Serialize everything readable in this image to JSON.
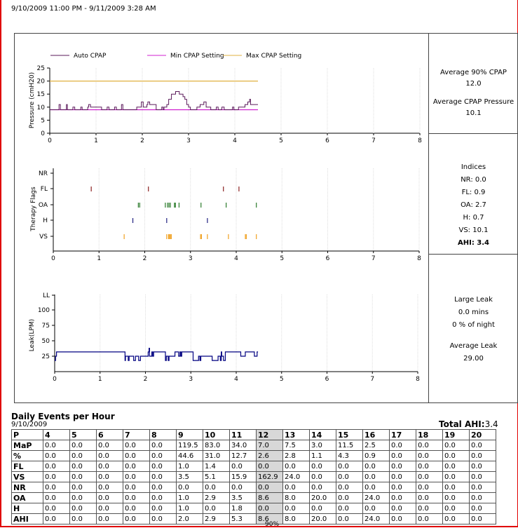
{
  "header": {
    "date_range": "9/10/2009 11:00 PM - 9/11/2009 3:28 AM"
  },
  "colors": {
    "auto_cpap": "#5a1a5a",
    "min_cpap": "#d020d0",
    "max_cpap": "#e0b040",
    "fl": "#8b2020",
    "oa": "#2a7a2a",
    "h": "#202080",
    "vs": "#f0a020",
    "leak": "#000080"
  },
  "chart_data": [
    {
      "type": "line",
      "title": "",
      "ylabel": "Pressure (cmH20)",
      "xlim": [
        0,
        8
      ],
      "ylim": [
        0,
        25
      ],
      "xticks": [
        "0",
        "1",
        "2",
        "3",
        "4",
        "5",
        "6",
        "7",
        "8"
      ],
      "yticks": [
        "0",
        "5",
        "10",
        "15",
        "20",
        "25"
      ],
      "legend": [
        "Auto CPAP",
        "Min CPAP Setting",
        "Max CPAP Setting"
      ],
      "series": [
        {
          "name": "Auto CPAP",
          "points": [
            [
              0,
              9
            ],
            [
              0.2,
              9
            ],
            [
              0.2,
              11
            ],
            [
              0.23,
              11
            ],
            [
              0.23,
              9
            ],
            [
              0.36,
              9
            ],
            [
              0.36,
              11
            ],
            [
              0.38,
              11
            ],
            [
              0.38,
              9
            ],
            [
              0.5,
              9
            ],
            [
              0.5,
              10
            ],
            [
              0.54,
              10
            ],
            [
              0.54,
              9
            ],
            [
              0.67,
              9
            ],
            [
              0.67,
              10
            ],
            [
              0.7,
              10
            ],
            [
              0.7,
              9
            ],
            [
              0.82,
              9
            ],
            [
              0.82,
              10
            ],
            [
              0.84,
              10
            ],
            [
              0.84,
              11
            ],
            [
              0.88,
              11
            ],
            [
              0.88,
              10
            ],
            [
              1.12,
              10
            ],
            [
              1.12,
              9
            ],
            [
              1.24,
              9
            ],
            [
              1.24,
              10
            ],
            [
              1.28,
              10
            ],
            [
              1.28,
              9
            ],
            [
              1.4,
              9
            ],
            [
              1.4,
              10
            ],
            [
              1.44,
              10
            ],
            [
              1.44,
              9
            ],
            [
              1.55,
              9
            ],
            [
              1.55,
              11
            ],
            [
              1.58,
              11
            ],
            [
              1.58,
              9
            ],
            [
              1.88,
              9
            ],
            [
              1.88,
              10
            ],
            [
              1.98,
              10
            ],
            [
              1.98,
              12
            ],
            [
              2.02,
              12
            ],
            [
              2.02,
              10
            ],
            [
              2.1,
              10
            ],
            [
              2.1,
              11
            ],
            [
              2.12,
              11
            ],
            [
              2.12,
              12
            ],
            [
              2.16,
              12
            ],
            [
              2.16,
              11
            ],
            [
              2.3,
              11
            ],
            [
              2.3,
              9
            ],
            [
              2.42,
              9
            ],
            [
              2.42,
              10
            ],
            [
              2.45,
              10
            ],
            [
              2.45,
              9
            ],
            [
              2.47,
              9
            ],
            [
              2.47,
              10
            ],
            [
              2.53,
              10
            ],
            [
              2.53,
              11
            ],
            [
              2.57,
              11
            ],
            [
              2.57,
              13
            ],
            [
              2.63,
              13
            ],
            [
              2.63,
              15
            ],
            [
              2.72,
              15
            ],
            [
              2.72,
              16
            ],
            [
              2.8,
              16
            ],
            [
              2.8,
              15
            ],
            [
              2.88,
              15
            ],
            [
              2.88,
              14
            ],
            [
              2.92,
              14
            ],
            [
              2.92,
              13
            ],
            [
              2.96,
              13
            ],
            [
              2.96,
              11
            ],
            [
              3.0,
              11
            ],
            [
              3.0,
              10
            ],
            [
              3.04,
              10
            ],
            [
              3.04,
              9
            ],
            [
              3.18,
              9
            ],
            [
              3.18,
              10
            ],
            [
              3.25,
              10
            ],
            [
              3.25,
              11
            ],
            [
              3.33,
              11
            ],
            [
              3.33,
              12
            ],
            [
              3.38,
              12
            ],
            [
              3.38,
              10
            ],
            [
              3.48,
              10
            ],
            [
              3.48,
              9
            ],
            [
              3.6,
              9
            ],
            [
              3.6,
              10
            ],
            [
              3.64,
              10
            ],
            [
              3.64,
              9
            ],
            [
              3.72,
              9
            ],
            [
              3.72,
              10
            ],
            [
              3.77,
              10
            ],
            [
              3.77,
              9
            ],
            [
              3.95,
              9
            ],
            [
              3.95,
              10
            ],
            [
              3.98,
              10
            ],
            [
              3.98,
              9
            ],
            [
              4.08,
              9
            ],
            [
              4.08,
              10
            ],
            [
              4.22,
              10
            ],
            [
              4.22,
              11
            ],
            [
              4.28,
              11
            ],
            [
              4.28,
              12
            ],
            [
              4.32,
              12
            ],
            [
              4.32,
              13
            ],
            [
              4.34,
              13
            ],
            [
              4.34,
              11
            ],
            [
              4.5,
              11
            ]
          ]
        },
        {
          "name": "Min CPAP Setting",
          "points": [
            [
              0,
              9
            ],
            [
              4.5,
              9
            ]
          ]
        },
        {
          "name": "Max CPAP Setting",
          "points": [
            [
              0,
              20
            ],
            [
              4.5,
              20
            ]
          ]
        }
      ]
    },
    {
      "type": "scatter",
      "ylabel": "Therapy Flags",
      "xlim": [
        0,
        8
      ],
      "xticks": [
        "0",
        "1",
        "2",
        "3",
        "4",
        "5",
        "6",
        "7",
        "8"
      ],
      "categories": [
        "NR",
        "FL",
        "OA",
        "H",
        "VS"
      ],
      "series": [
        {
          "name": "NR",
          "x": []
        },
        {
          "name": "FL",
          "x": [
            0.83,
            2.08,
            3.72,
            4.06
          ]
        },
        {
          "name": "OA",
          "x": [
            1.86,
            1.89,
            2.45,
            2.5,
            2.53,
            2.56,
            2.65,
            2.67,
            2.75,
            3.23,
            3.78,
            4.44
          ]
        },
        {
          "name": "H",
          "x": [
            1.74,
            2.48,
            3.37
          ]
        },
        {
          "name": "VS",
          "x": [
            1.55,
            2.48,
            2.52,
            2.54,
            2.56,
            2.58,
            3.22,
            3.24,
            3.37,
            3.83,
            4.2,
            4.22,
            4.44
          ]
        }
      ]
    },
    {
      "type": "line",
      "ylabel": "Leak(LPM)",
      "xlim": [
        0,
        8
      ],
      "ylim": [
        0,
        125
      ],
      "xticks": [
        "0",
        "1",
        "2",
        "3",
        "4",
        "5",
        "6",
        "7",
        "8"
      ],
      "yticks": [
        "25",
        "50",
        "75",
        "100",
        "LL"
      ],
      "series": [
        {
          "name": "Leak",
          "points": [
            [
              0,
              18
            ],
            [
              0.02,
              18
            ],
            [
              0.02,
              25
            ],
            [
              0.04,
              25
            ],
            [
              0.04,
              32
            ],
            [
              1.55,
              32
            ],
            [
              1.55,
              18
            ],
            [
              1.56,
              18
            ],
            [
              1.56,
              25
            ],
            [
              1.62,
              25
            ],
            [
              1.62,
              18
            ],
            [
              1.64,
              18
            ],
            [
              1.64,
              25
            ],
            [
              1.74,
              25
            ],
            [
              1.74,
              18
            ],
            [
              1.78,
              18
            ],
            [
              1.78,
              25
            ],
            [
              1.85,
              25
            ],
            [
              1.85,
              18
            ],
            [
              1.89,
              18
            ],
            [
              1.89,
              25
            ],
            [
              2.06,
              25
            ],
            [
              2.06,
              32
            ],
            [
              2.08,
              32
            ],
            [
              2.08,
              38
            ],
            [
              2.09,
              38
            ],
            [
              2.09,
              25
            ],
            [
              2.14,
              25
            ],
            [
              2.14,
              32
            ],
            [
              2.16,
              32
            ],
            [
              2.16,
              25
            ],
            [
              2.18,
              25
            ],
            [
              2.18,
              32
            ],
            [
              2.44,
              32
            ],
            [
              2.44,
              18
            ],
            [
              2.46,
              18
            ],
            [
              2.46,
              25
            ],
            [
              2.5,
              25
            ],
            [
              2.5,
              18
            ],
            [
              2.52,
              18
            ],
            [
              2.52,
              25
            ],
            [
              2.65,
              25
            ],
            [
              2.65,
              32
            ],
            [
              2.73,
              32
            ],
            [
              2.73,
              25
            ],
            [
              2.76,
              25
            ],
            [
              2.76,
              32
            ],
            [
              2.78,
              32
            ],
            [
              2.78,
              25
            ],
            [
              2.8,
              25
            ],
            [
              2.8,
              32
            ],
            [
              3.05,
              32
            ],
            [
              3.05,
              18
            ],
            [
              3.17,
              18
            ],
            [
              3.17,
              25
            ],
            [
              3.2,
              25
            ],
            [
              3.2,
              18
            ],
            [
              3.22,
              18
            ],
            [
              3.22,
              25
            ],
            [
              3.47,
              25
            ],
            [
              3.47,
              18
            ],
            [
              3.6,
              18
            ],
            [
              3.6,
              25
            ],
            [
              3.65,
              25
            ],
            [
              3.65,
              18
            ],
            [
              3.67,
              18
            ],
            [
              3.67,
              32
            ],
            [
              3.68,
              32
            ],
            [
              3.68,
              25
            ],
            [
              3.72,
              25
            ],
            [
              3.72,
              18
            ],
            [
              3.76,
              18
            ],
            [
              3.76,
              32
            ],
            [
              4.1,
              32
            ],
            [
              4.1,
              25
            ],
            [
              4.2,
              25
            ],
            [
              4.2,
              32
            ],
            [
              4.4,
              32
            ],
            [
              4.4,
              25
            ],
            [
              4.46,
              25
            ],
            [
              4.46,
              32
            ],
            [
              4.48,
              32
            ]
          ]
        }
      ]
    }
  ],
  "sidebar": {
    "pressure": {
      "avg90_label": "Average 90% CPAP",
      "avg90_value": "12.0",
      "avg_label": "Average CPAP Pressure",
      "avg_value": "10.1"
    },
    "indices": {
      "title": "Indices",
      "items": [
        "NR: 0.0",
        "FL: 0.9",
        "OA: 2.7",
        "H: 0.7",
        "VS: 10.1"
      ],
      "ahi": "AHI: 3.4"
    },
    "leak": {
      "large_leak_label": "Large Leak",
      "large_leak_mins": "0.0 mins",
      "large_leak_pct": "0 % of night",
      "avg_label": "Average Leak",
      "avg_value": "29.00"
    }
  },
  "events": {
    "title": "Daily Events per Hour",
    "date": "9/10/2009",
    "total_label": "Total AHI:",
    "total_value": "3.4",
    "highlight_col": "12",
    "footnote": "90%",
    "columns": [
      "P",
      "4",
      "5",
      "6",
      "7",
      "8",
      "9",
      "10",
      "11",
      "12",
      "13",
      "14",
      "15",
      "16",
      "17",
      "18",
      "19",
      "20"
    ],
    "rows": [
      [
        "MaP",
        "0.0",
        "0.0",
        "0.0",
        "0.0",
        "0.0",
        "119.5",
        "83.0",
        "34.0",
        "7.0",
        "7.5",
        "3.0",
        "11.5",
        "2.5",
        "0.0",
        "0.0",
        "0.0",
        "0.0"
      ],
      [
        "%",
        "0.0",
        "0.0",
        "0.0",
        "0.0",
        "0.0",
        "44.6",
        "31.0",
        "12.7",
        "2.6",
        "2.8",
        "1.1",
        "4.3",
        "0.9",
        "0.0",
        "0.0",
        "0.0",
        "0.0"
      ],
      [
        "FL",
        "0.0",
        "0.0",
        "0.0",
        "0.0",
        "0.0",
        "1.0",
        "1.4",
        "0.0",
        "0.0",
        "0.0",
        "0.0",
        "0.0",
        "0.0",
        "0.0",
        "0.0",
        "0.0",
        "0.0"
      ],
      [
        "VS",
        "0.0",
        "0.0",
        "0.0",
        "0.0",
        "0.0",
        "3.5",
        "5.1",
        "15.9",
        "162.9",
        "24.0",
        "0.0",
        "0.0",
        "0.0",
        "0.0",
        "0.0",
        "0.0",
        "0.0"
      ],
      [
        "NR",
        "0.0",
        "0.0",
        "0.0",
        "0.0",
        "0.0",
        "0.0",
        "0.0",
        "0.0",
        "0.0",
        "0.0",
        "0.0",
        "0.0",
        "0.0",
        "0.0",
        "0.0",
        "0.0",
        "0.0"
      ],
      [
        "OA",
        "0.0",
        "0.0",
        "0.0",
        "0.0",
        "0.0",
        "1.0",
        "2.9",
        "3.5",
        "8.6",
        "8.0",
        "20.0",
        "0.0",
        "24.0",
        "0.0",
        "0.0",
        "0.0",
        "0.0"
      ],
      [
        "H",
        "0.0",
        "0.0",
        "0.0",
        "0.0",
        "0.0",
        "1.0",
        "0.0",
        "1.8",
        "0.0",
        "0.0",
        "0.0",
        "0.0",
        "0.0",
        "0.0",
        "0.0",
        "0.0",
        "0.0"
      ],
      [
        "AHI",
        "0.0",
        "0.0",
        "0.0",
        "0.0",
        "0.0",
        "2.0",
        "2.9",
        "5.3",
        "8.6",
        "8.0",
        "20.0",
        "0.0",
        "24.0",
        "0.0",
        "0.0",
        "0.0",
        "0.0"
      ]
    ]
  }
}
